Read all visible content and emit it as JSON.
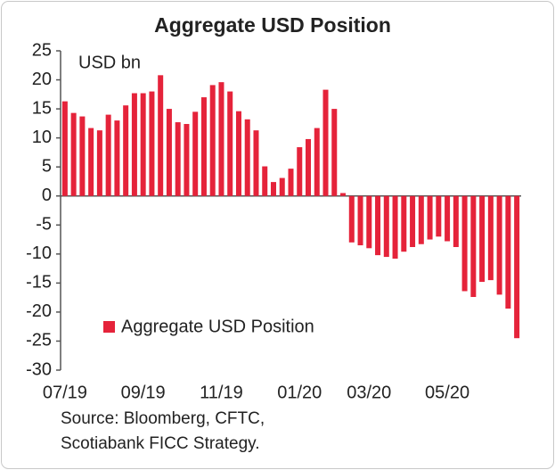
{
  "chart_data": {
    "type": "bar",
    "title": "Aggregate USD Position",
    "unit_label": "USD bn",
    "series": [
      {
        "name": "Aggregate USD Position",
        "color": "#e5233a",
        "values": [
          16.3,
          14.3,
          13.7,
          11.7,
          11.3,
          14.0,
          13.0,
          15.6,
          17.7,
          17.7,
          18.0,
          20.8,
          15.0,
          12.7,
          12.4,
          14.5,
          17.0,
          19.1,
          19.6,
          18.0,
          14.6,
          13.2,
          11.3,
          5.1,
          2.4,
          3.1,
          4.7,
          8.4,
          9.8,
          11.7,
          18.3,
          15.0,
          0.5,
          -8.0,
          -8.5,
          -9.0,
          -10.2,
          -10.5,
          -10.8,
          -9.6,
          -8.8,
          -8.3,
          -7.5,
          -7.0,
          -7.8,
          -8.8,
          -16.4,
          -17.4,
          -14.8,
          -14.5,
          -17.0,
          -19.4,
          -24.5
        ]
      }
    ],
    "categories": [
      "07/19",
      null,
      null,
      null,
      null,
      null,
      null,
      null,
      null,
      "09/19",
      null,
      null,
      null,
      null,
      null,
      null,
      null,
      null,
      "11/19",
      null,
      null,
      null,
      null,
      null,
      null,
      null,
      null,
      "01/20",
      null,
      null,
      null,
      null,
      null,
      null,
      null,
      "03/20",
      null,
      null,
      null,
      null,
      null,
      null,
      null,
      null,
      "05/20",
      null,
      null,
      null,
      null,
      null,
      null,
      null,
      null
    ],
    "ylim": [
      -30,
      25
    ],
    "yticks": [
      -30,
      -25,
      -20,
      -15,
      -10,
      -5,
      0,
      5,
      10,
      15,
      20,
      25
    ],
    "legend": "center left",
    "source": [
      "Source: Bloomberg, CFTC,",
      "Scotiabank FICC  Strategy."
    ]
  }
}
